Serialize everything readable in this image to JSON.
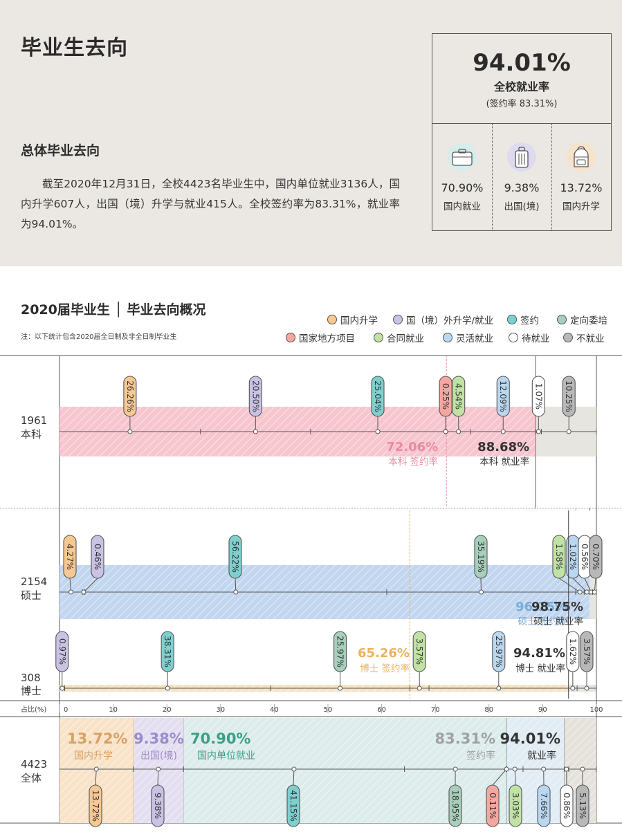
{
  "header": {
    "title": "毕业生去向"
  },
  "summary": {
    "heading": "总体毕业去向",
    "paragraph": "截至2020年12月31日，全校4423名毕业生中，国内单位就业3136人，国内升学607人，出国（境）升学与就业415人。全校签约率为83.31%，就业率为94.01%。"
  },
  "kpi": {
    "main_value": "94.01%",
    "main_label": "全校就业率",
    "sub_label": "(签约率 83.31%)",
    "items": [
      {
        "value": "70.90%",
        "label": "国内就业",
        "icon": "briefcase-icon"
      },
      {
        "value": "9.38%",
        "label": "出国(境)",
        "icon": "suitcase-icon"
      },
      {
        "value": "13.72%",
        "label": "国内升学",
        "icon": "backpack-icon"
      }
    ]
  },
  "chart_title": "2020届毕业生 │ 毕业去向概况",
  "chart_note": "注：以下统计包含2020届全日制及非全日制毕业生",
  "colors": {
    "domestic_study": "#f6c892",
    "abroad": "#c9c2e4",
    "signed": "#7ed0cf",
    "targeted": "#a7cfbb",
    "national": "#f4a7a0",
    "contract": "#c0e3a5",
    "flexible": "#bad7f2",
    "pending": "#ffffff",
    "unemployed": "#b8b8b8"
  },
  "legend": [
    {
      "key": "domestic_study",
      "label": "国内升学"
    },
    {
      "key": "abroad",
      "label": "国（境）外升学/就业"
    },
    {
      "key": "signed",
      "label": "签约"
    },
    {
      "key": "targeted",
      "label": "定向委培"
    },
    {
      "key": "national",
      "label": "国家地方项目"
    },
    {
      "key": "contract",
      "label": "合同就业"
    },
    {
      "key": "flexible",
      "label": "灵活就业"
    },
    {
      "key": "pending",
      "label": "待就业"
    },
    {
      "key": "unemployed",
      "label": "不就业"
    }
  ],
  "chart_data": {
    "type": "bar",
    "xlabel": "占比(%)",
    "xlim": [
      0,
      100
    ],
    "xticks": [
      0,
      10,
      20,
      30,
      40,
      50,
      60,
      70,
      80,
      90,
      100
    ],
    "groups": [
      {
        "count": "1961",
        "name": "本科",
        "signed_rate": 72.06,
        "signed_rate_text": "72.06%",
        "signed_rate_label": "本科 签约率",
        "employment_rate": 88.68,
        "employment_rate_text": "88.68%",
        "employment_rate_label": "本科 就业率",
        "segments": [
          {
            "key": "domestic_study",
            "value": 26.26,
            "text": "26.26%"
          },
          {
            "key": "abroad",
            "value": 20.5,
            "text": "20.50%"
          },
          {
            "key": "signed",
            "value": 25.04,
            "text": "25.04%"
          },
          {
            "key": "national",
            "value": 0.25,
            "text": "0.25%"
          },
          {
            "key": "contract",
            "value": 4.54,
            "text": "4.54%"
          },
          {
            "key": "flexible",
            "value": 12.09,
            "text": "12.09%"
          },
          {
            "key": "pending",
            "value": 1.07,
            "text": "1.07%"
          },
          {
            "key": "unemployed",
            "value": 10.25,
            "text": "10.25%"
          }
        ]
      },
      {
        "count": "2154",
        "name": "硕士",
        "signed_rate": 96.15,
        "signed_rate_text": "96.15%",
        "signed_rate_label": "硕士 签约率",
        "employment_rate": 98.75,
        "employment_rate_text": "98.75%",
        "employment_rate_label": "硕士 就业率",
        "segments": [
          {
            "key": "domestic_study",
            "value": 4.27,
            "text": "4.27%"
          },
          {
            "key": "abroad",
            "value": 0.46,
            "text": "0.46%"
          },
          {
            "key": "signed",
            "value": 56.22,
            "text": "56.22%"
          },
          {
            "key": "targeted",
            "value": 35.19,
            "text": "35.19%"
          },
          {
            "key": "contract",
            "value": 1.58,
            "text": "1.58%"
          },
          {
            "key": "flexible",
            "value": 1.02,
            "text": "1.02%"
          },
          {
            "key": "pending",
            "value": 0.56,
            "text": "0.56%"
          },
          {
            "key": "unemployed",
            "value": 0.7,
            "text": "0.70%"
          }
        ]
      },
      {
        "count": "308",
        "name": "博士",
        "signed_rate": 65.26,
        "signed_rate_text": "65.26%",
        "signed_rate_label": "博士 签约率",
        "employment_rate": 94.81,
        "employment_rate_text": "94.81%",
        "employment_rate_label": "博士 就业率",
        "segments": [
          {
            "key": "abroad",
            "value": 0.97,
            "text": "0.97%"
          },
          {
            "key": "signed",
            "value": 38.31,
            "text": "38.31%"
          },
          {
            "key": "targeted",
            "value": 25.97,
            "text": "25.97%"
          },
          {
            "key": "contract",
            "value": 3.57,
            "text": "3.57%"
          },
          {
            "key": "flexible",
            "value": 25.97,
            "text": "25.97%"
          },
          {
            "key": "pending",
            "value": 1.62,
            "text": "1.62%"
          },
          {
            "key": "unemployed",
            "value": 3.57,
            "text": "3.57%"
          }
        ]
      }
    ],
    "total": {
      "count": "4423",
      "name": "全体",
      "stats": [
        {
          "value": "13.72%",
          "label": "国内升学",
          "key": "domestic_study"
        },
        {
          "value": "9.38%",
          "label": "出国(境)",
          "key": "abroad"
        },
        {
          "value": "70.90%",
          "label": "国内单位就业",
          "key": "targeted"
        },
        {
          "value": "83.31%",
          "label": "签约率",
          "key": "unemployed"
        },
        {
          "value": "94.01%",
          "label": "就业率",
          "key": "pending"
        }
      ],
      "signed_rate": 83.31,
      "employment_rate": 94.01,
      "segments": [
        {
          "key": "domestic_study",
          "value": 13.72,
          "text": "13.72%"
        },
        {
          "key": "abroad",
          "value": 9.38,
          "text": "9.38%"
        },
        {
          "key": "signed",
          "value": 41.15,
          "text": "41.15%"
        },
        {
          "key": "targeted",
          "value": 18.95,
          "text": "18.95%"
        },
        {
          "key": "national",
          "value": 0.11,
          "text": "0.11%"
        },
        {
          "key": "contract",
          "value": 3.03,
          "text": "3.03%"
        },
        {
          "key": "flexible",
          "value": 7.66,
          "text": "7.66%"
        },
        {
          "key": "pending",
          "value": 0.86,
          "text": "0.86%"
        },
        {
          "key": "unemployed",
          "value": 5.13,
          "text": "5.13%"
        }
      ]
    }
  }
}
